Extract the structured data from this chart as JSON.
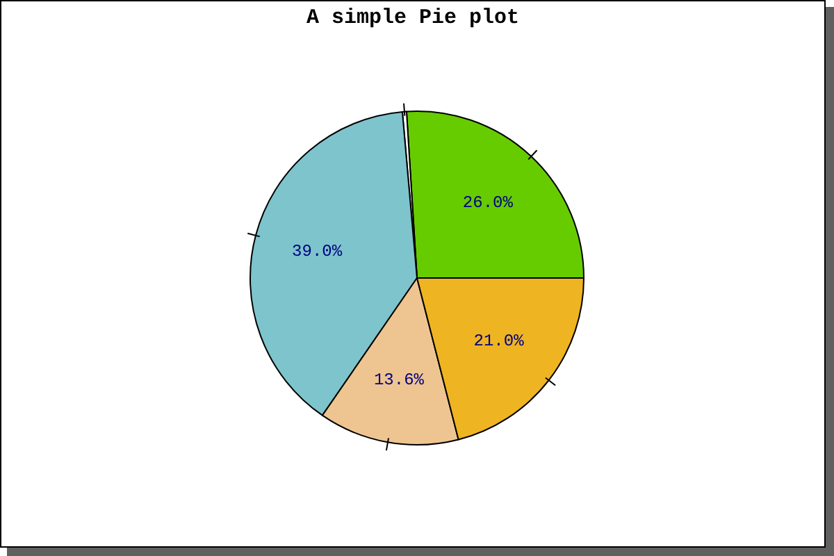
{
  "chart_data": {
    "type": "pie",
    "title": "A simple Pie plot",
    "categories": [
      null,
      null,
      null,
      null,
      null
    ],
    "values": [
      26.0,
      0.4,
      39.0,
      13.6,
      21.0
    ],
    "colors": [
      "#66cc00",
      "#ffffff",
      "#7ec4cc",
      "#eec591",
      "#eeb422"
    ],
    "value_labels": [
      "26.0%",
      null,
      "39.0%",
      "13.6%",
      "21.0%"
    ]
  }
}
